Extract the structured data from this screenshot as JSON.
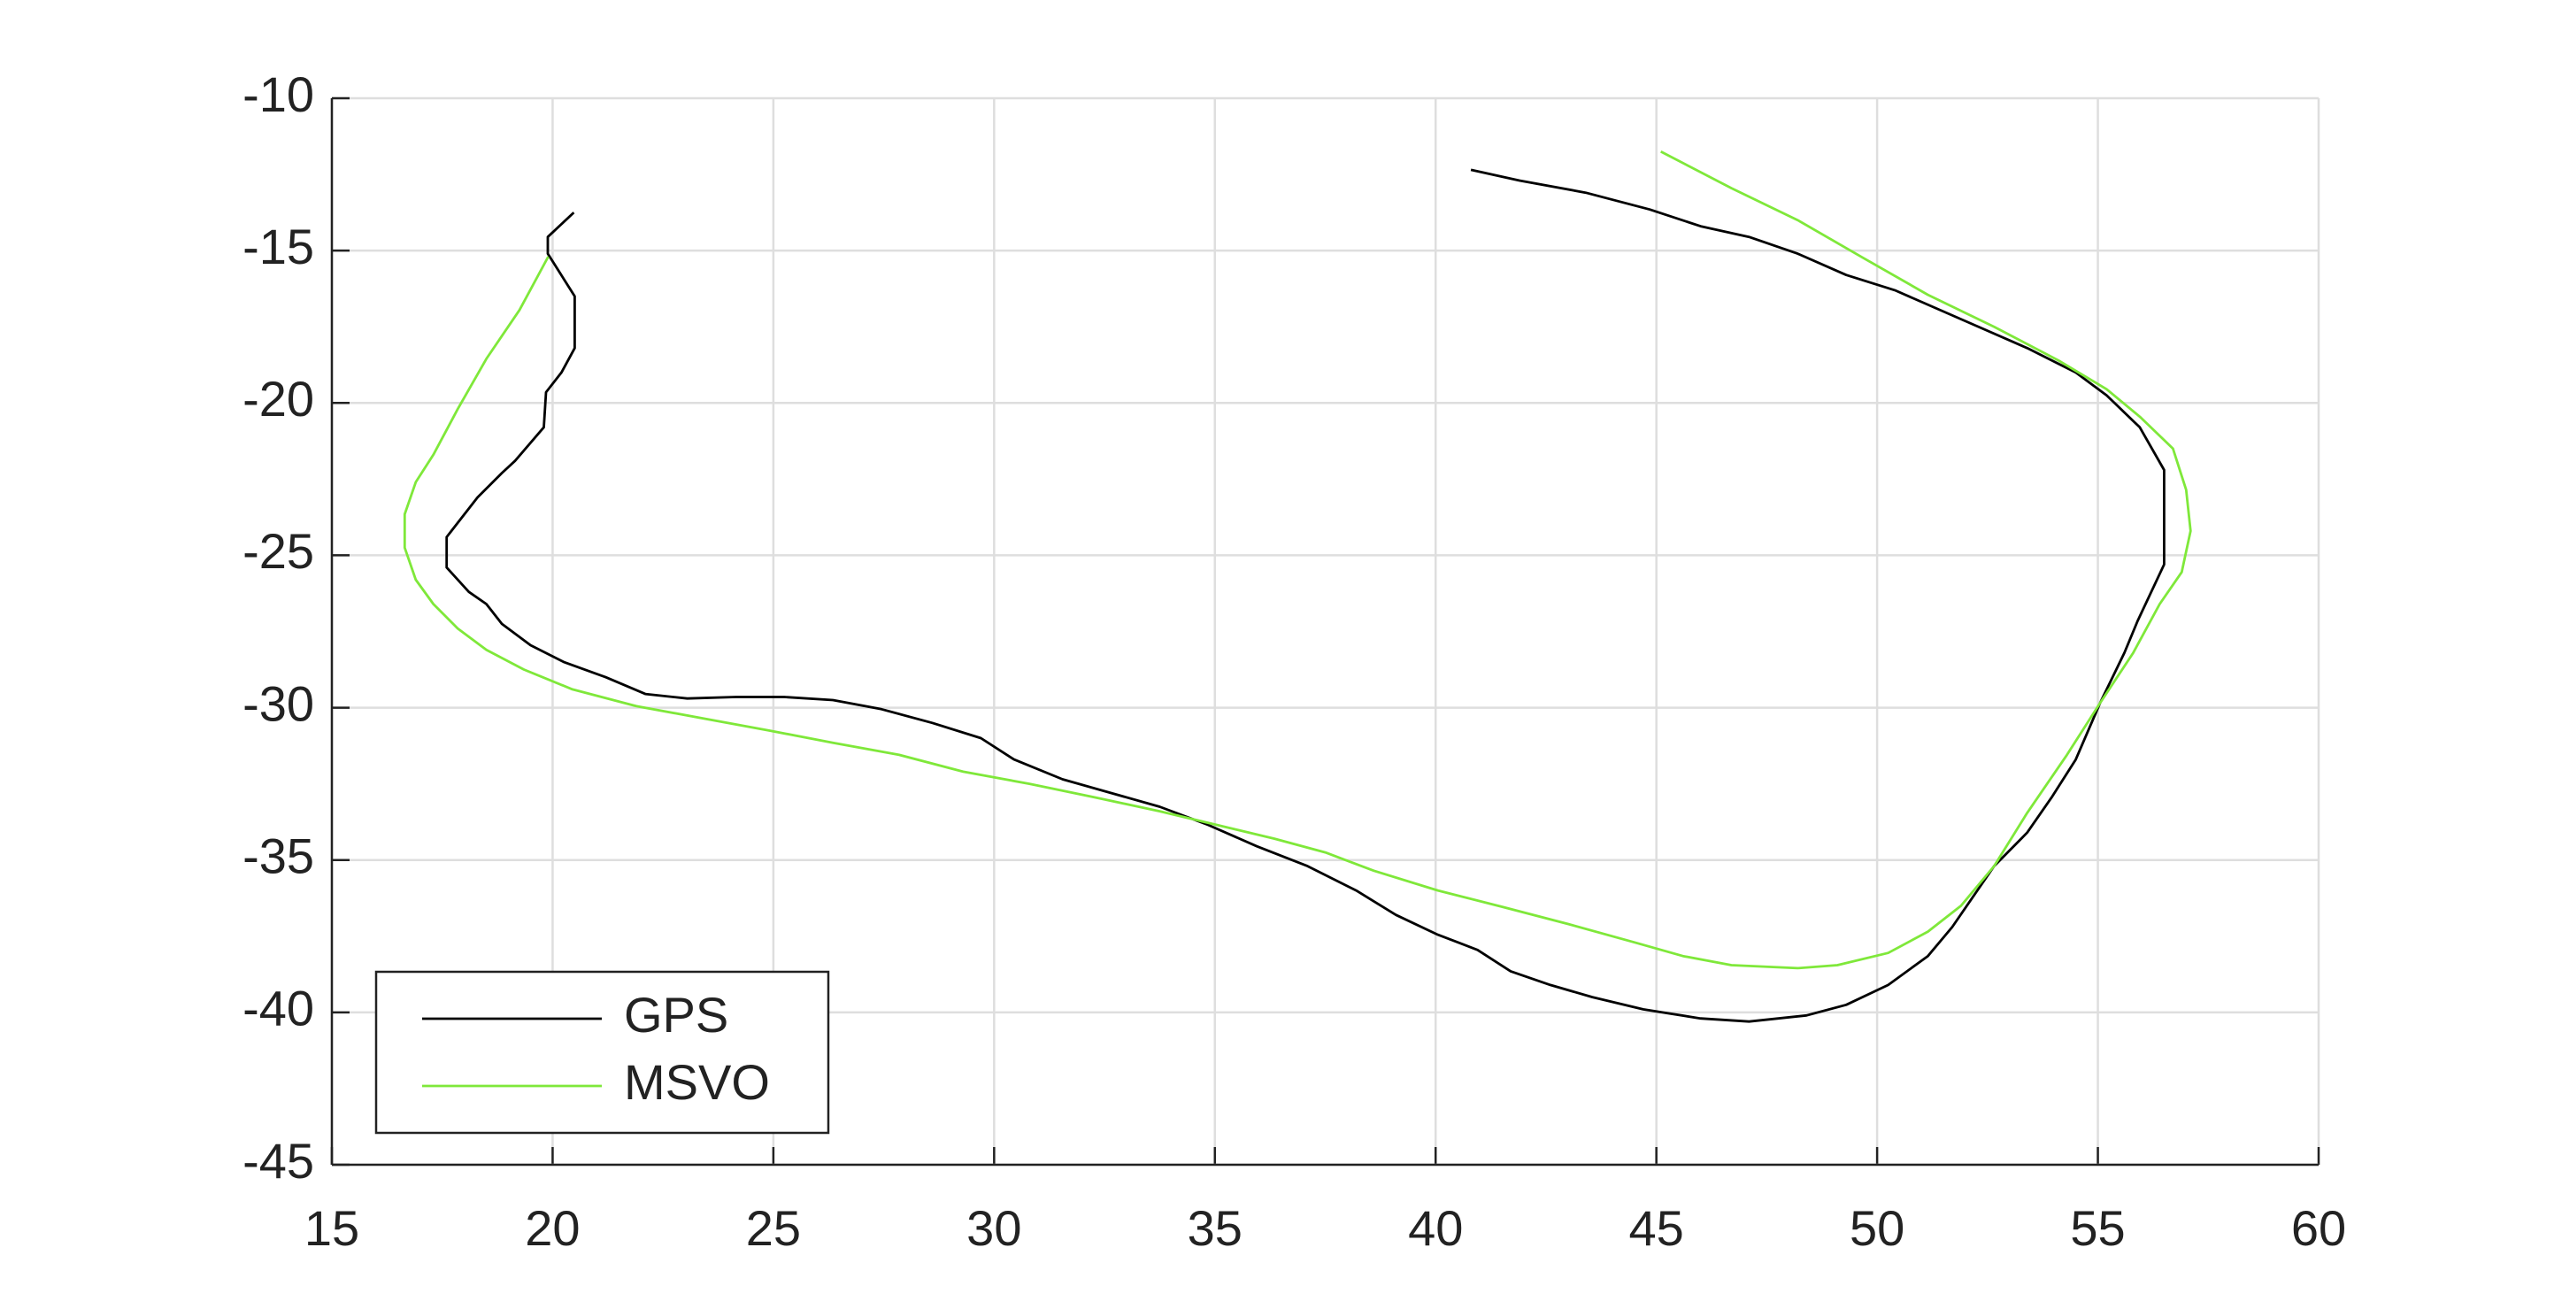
{
  "chart_data": {
    "type": "line",
    "xlim": [
      15,
      60
    ],
    "xticks": [
      15,
      20,
      25,
      30,
      35,
      40,
      45,
      50,
      55,
      60
    ],
    "ylim": [
      -45,
      -10
    ],
    "yticks": [
      -45,
      -40,
      -35,
      -30,
      -25,
      -20,
      -15,
      -10
    ],
    "grid": true,
    "legend": "lower left",
    "series": [
      {
        "name": "GPS",
        "color": "#000000",
        "x": [
          20.48,
          19.89,
          19.89,
          20.5,
          20.5,
          20.2,
          19.85,
          19.8,
          19.15,
          18.85,
          18.3,
          17.6,
          17.6,
          18.1,
          18.5,
          18.85,
          19.5,
          20.25,
          21.2,
          22.1,
          23.05,
          24.15,
          25.25,
          26.35,
          27.45,
          28.6,
          29.7,
          30.45,
          31.55,
          32.65,
          33.75,
          34.85,
          35.95,
          37.1,
          38.2,
          39.1,
          40.05,
          40.95,
          41.7,
          42.6,
          43.55,
          44.7,
          46.0,
          47.1,
          48.4,
          49.3,
          50.25,
          51.15,
          51.7,
          52.65,
          53.4,
          53.95,
          54.5,
          55.05,
          55.6,
          55.9,
          56.5,
          56.5,
          55.95,
          55.2,
          54.5,
          53.4,
          51.9,
          50.4,
          49.3,
          48.2,
          47.1,
          46.0,
          44.85,
          43.4,
          41.9,
          40.8
        ],
        "values": [
          -13.75,
          -14.55,
          -15.1,
          -16.5,
          -18.2,
          -19.0,
          -19.65,
          -20.8,
          -21.9,
          -22.3,
          -23.1,
          -24.4,
          -25.4,
          -26.2,
          -26.6,
          -27.25,
          -27.95,
          -28.5,
          -29.0,
          -29.55,
          -29.7,
          -29.65,
          -29.65,
          -29.75,
          -30.05,
          -30.5,
          -31.0,
          -31.7,
          -32.35,
          -32.8,
          -33.25,
          -33.85,
          -34.55,
          -35.2,
          -36.0,
          -36.8,
          -37.45,
          -37.95,
          -38.65,
          -39.1,
          -39.5,
          -39.9,
          -40.2,
          -40.3,
          -40.1,
          -39.75,
          -39.1,
          -38.15,
          -37.2,
          -35.2,
          -34.1,
          -32.95,
          -31.7,
          -29.85,
          -28.2,
          -27.15,
          -25.3,
          -22.2,
          -20.8,
          -19.75,
          -19.0,
          -18.2,
          -17.25,
          -16.3,
          -15.8,
          -15.1,
          -14.55,
          -14.2,
          -13.65,
          -13.1,
          -12.7,
          -12.35
        ]
      },
      {
        "name": "MSVO",
        "color": "#7fe83a",
        "x": [
          45.1,
          46.7,
          48.2,
          49.7,
          51.15,
          52.65,
          54.1,
          55.2,
          55.95,
          56.7,
          57.0,
          57.1,
          56.9,
          56.4,
          55.8,
          55.05,
          54.3,
          53.4,
          52.65,
          51.9,
          51.15,
          50.25,
          49.1,
          48.2,
          46.7,
          45.6,
          44.5,
          43.0,
          41.55,
          40.05,
          38.6,
          37.5,
          36.35,
          35.05,
          33.75,
          32.3,
          30.8,
          29.3,
          27.85,
          26.35,
          24.9,
          23.4,
          21.9,
          20.45,
          19.35,
          18.5,
          17.85,
          17.3,
          16.9,
          16.65,
          16.65,
          16.9,
          17.3,
          17.85,
          18.5,
          19.25,
          19.9
        ],
        "values": [
          -11.75,
          -12.95,
          -14.0,
          -15.25,
          -16.45,
          -17.5,
          -18.6,
          -19.55,
          -20.45,
          -21.5,
          -22.85,
          -24.2,
          -25.55,
          -26.6,
          -28.2,
          -29.85,
          -31.55,
          -33.45,
          -35.2,
          -36.5,
          -37.35,
          -38.05,
          -38.45,
          -38.55,
          -38.45,
          -38.15,
          -37.7,
          -37.1,
          -36.55,
          -36.0,
          -35.35,
          -34.75,
          -34.3,
          -33.85,
          -33.4,
          -32.95,
          -32.5,
          -32.1,
          -31.55,
          -31.15,
          -30.75,
          -30.35,
          -29.95,
          -29.4,
          -28.75,
          -28.1,
          -27.4,
          -26.6,
          -25.8,
          -24.75,
          -23.65,
          -22.6,
          -21.7,
          -20.2,
          -18.55,
          -16.95,
          -15.2
        ]
      }
    ]
  }
}
